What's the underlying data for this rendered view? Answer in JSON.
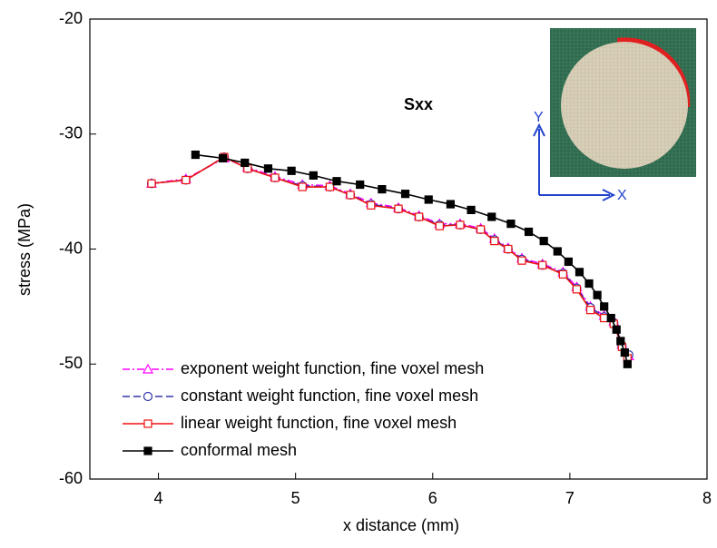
{
  "chart_data": {
    "type": "line",
    "xlabel": "x distance (mm)",
    "ylabel": "stress (MPa)",
    "annotation": "Sxx",
    "inset_axis_labels": [
      "X",
      "Y"
    ],
    "xlim": [
      3.5,
      8
    ],
    "xticks": [
      4,
      5,
      6,
      7,
      8
    ],
    "ylim": [
      -60,
      -20
    ],
    "yticks": [
      -60,
      -50,
      -40,
      -30,
      -20
    ],
    "legend": "lower left",
    "series": [
      {
        "name": "exponent weight function, fine voxel mesh",
        "color": "#ff00ff",
        "dash": "dashdot",
        "marker": "triangle-open",
        "x": [
          3.95,
          4.2,
          4.48,
          4.65,
          4.85,
          5.05,
          5.25,
          5.4,
          5.55,
          5.75,
          5.9,
          6.05,
          6.2,
          6.35,
          6.45,
          6.55,
          6.65,
          6.8,
          6.95,
          7.05,
          7.15,
          7.25,
          7.32,
          7.38,
          7.43
        ],
        "values": [
          -34.3,
          -33.9,
          -32.1,
          -32.9,
          -33.7,
          -34.4,
          -34.5,
          -35.2,
          -36.0,
          -36.4,
          -37.1,
          -37.8,
          -37.8,
          -38.2,
          -39.1,
          -39.9,
          -40.8,
          -41.3,
          -42.0,
          -43.3,
          -45.0,
          -45.8,
          -46.3,
          -48.3,
          -49.3
        ]
      },
      {
        "name": "constant weight function, fine voxel mesh",
        "color": "#3333aa",
        "dash": "dashed",
        "marker": "circle-open",
        "x": [
          3.95,
          4.2,
          4.48,
          4.65,
          4.85,
          5.05,
          5.25,
          5.4,
          5.55,
          5.75,
          5.9,
          6.05,
          6.2,
          6.35,
          6.45,
          6.55,
          6.65,
          6.8,
          6.95,
          7.05,
          7.15,
          7.25,
          7.32,
          7.38,
          7.43
        ],
        "values": [
          -34.3,
          -34.0,
          -32.0,
          -33.0,
          -33.8,
          -34.5,
          -34.6,
          -35.3,
          -36.1,
          -36.5,
          -37.2,
          -37.9,
          -37.9,
          -38.3,
          -39.2,
          -40.0,
          -40.9,
          -41.4,
          -42.1,
          -43.4,
          -45.1,
          -45.9,
          -46.4,
          -48.4,
          -49.2
        ]
      },
      {
        "name": "linear weight function, fine voxel mesh",
        "color": "#ee1111",
        "dash": "solid",
        "marker": "square-open",
        "x": [
          3.95,
          4.2,
          4.48,
          4.65,
          4.85,
          5.05,
          5.25,
          5.4,
          5.55,
          5.75,
          5.9,
          6.05,
          6.2,
          6.35,
          6.45,
          6.55,
          6.65,
          6.8,
          6.95,
          7.05,
          7.15,
          7.25,
          7.32,
          7.38,
          7.42
        ],
        "values": [
          -34.3,
          -34.0,
          -32.0,
          -33.0,
          -33.8,
          -34.6,
          -34.6,
          -35.3,
          -36.2,
          -36.5,
          -37.2,
          -38.0,
          -37.9,
          -38.3,
          -39.3,
          -40.0,
          -41.0,
          -41.4,
          -42.2,
          -43.5,
          -45.3,
          -46.0,
          -46.5,
          -48.5,
          -49.5
        ]
      },
      {
        "name": "conformal mesh",
        "color": "#000000",
        "dash": "solid",
        "marker": "square-filled",
        "x": [
          4.27,
          4.47,
          4.63,
          4.8,
          4.97,
          5.13,
          5.3,
          5.47,
          5.63,
          5.8,
          5.97,
          6.13,
          6.28,
          6.43,
          6.57,
          6.7,
          6.81,
          6.91,
          6.99,
          7.07,
          7.14,
          7.2,
          7.25,
          7.3,
          7.34,
          7.37,
          7.4,
          7.42
        ],
        "values": [
          -31.8,
          -32.1,
          -32.5,
          -33.0,
          -33.2,
          -33.6,
          -34.1,
          -34.4,
          -34.8,
          -35.2,
          -35.7,
          -36.1,
          -36.6,
          -37.2,
          -37.8,
          -38.5,
          -39.3,
          -40.2,
          -41.1,
          -42.0,
          -43.0,
          -44.0,
          -45.0,
          -46.0,
          -47.0,
          -48.0,
          -49.0,
          -50.0
        ]
      }
    ]
  }
}
